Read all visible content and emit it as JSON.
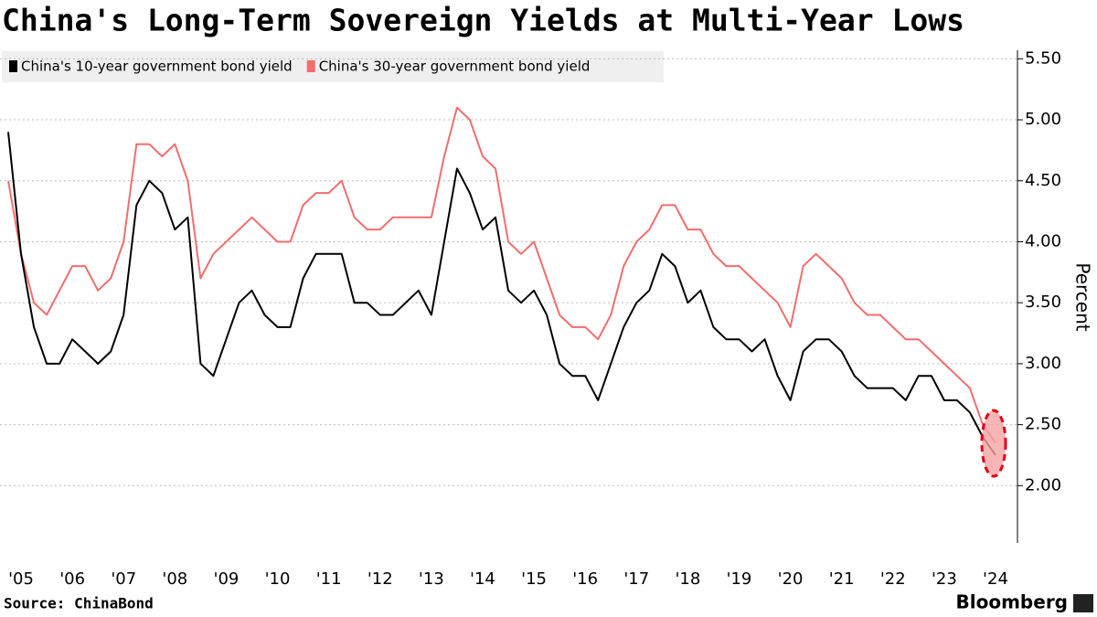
{
  "chart_data": {
    "type": "line",
    "title": "China's Long-Term Sovereign Yields at Multi-Year Lows",
    "y_label": "Percent",
    "source": "Source: ChinaBond",
    "credit": "Bloomberg",
    "categories": [
      null,
      "'05",
      null,
      null,
      null,
      "'06",
      null,
      null,
      null,
      "'07",
      null,
      null,
      null,
      "'08",
      null,
      null,
      null,
      "'09",
      null,
      null,
      null,
      "'10",
      null,
      null,
      null,
      "'11",
      null,
      null,
      null,
      "'12",
      null,
      null,
      null,
      "'13",
      null,
      null,
      null,
      "'14",
      null,
      null,
      null,
      "'15",
      null,
      null,
      null,
      "'16",
      null,
      null,
      null,
      "'17",
      null,
      null,
      null,
      "'18",
      null,
      null,
      null,
      "'19",
      null,
      null,
      null,
      "'20",
      null,
      null,
      null,
      "'21",
      null,
      null,
      null,
      "'22",
      null,
      null,
      null,
      "'23",
      null,
      null,
      null,
      "'24"
    ],
    "series": [
      {
        "name": "China's 10-year government bond yield",
        "color": "#000000",
        "values": [
          4.9,
          3.9,
          3.3,
          3.0,
          3.0,
          3.2,
          3.1,
          3.0,
          3.1,
          3.4,
          4.3,
          4.5,
          4.4,
          4.1,
          4.2,
          3.0,
          2.9,
          3.2,
          3.5,
          3.6,
          3.4,
          3.3,
          3.3,
          3.7,
          3.9,
          3.9,
          3.9,
          3.5,
          3.5,
          3.4,
          3.4,
          3.5,
          3.6,
          3.4,
          4.0,
          4.6,
          4.4,
          4.1,
          4.2,
          3.6,
          3.5,
          3.6,
          3.4,
          3.0,
          2.9,
          2.9,
          2.7,
          3.0,
          3.3,
          3.5,
          3.6,
          3.9,
          3.8,
          3.5,
          3.6,
          3.3,
          3.2,
          3.2,
          3.1,
          3.2,
          2.9,
          2.7,
          3.1,
          3.2,
          3.2,
          3.1,
          2.9,
          2.8,
          2.8,
          2.8,
          2.7,
          2.9,
          2.9,
          2.7,
          2.7,
          2.6,
          2.4,
          2.25
        ]
      },
      {
        "name": "China's 30-year government bond yield",
        "color": "#f26d6d",
        "values": [
          4.5,
          3.9,
          3.5,
          3.4,
          3.6,
          3.8,
          3.8,
          3.6,
          3.7,
          4.0,
          4.8,
          4.8,
          4.7,
          4.8,
          4.5,
          3.7,
          3.9,
          4.0,
          4.1,
          4.2,
          4.1,
          4.0,
          4.0,
          4.3,
          4.4,
          4.4,
          4.5,
          4.2,
          4.1,
          4.1,
          4.2,
          4.2,
          4.2,
          4.2,
          4.7,
          5.1,
          5.0,
          4.7,
          4.6,
          4.0,
          3.9,
          4.0,
          3.7,
          3.4,
          3.3,
          3.3,
          3.2,
          3.4,
          3.8,
          4.0,
          4.1,
          4.3,
          4.3,
          4.1,
          4.1,
          3.9,
          3.8,
          3.8,
          3.7,
          3.6,
          3.5,
          3.3,
          3.8,
          3.9,
          3.8,
          3.7,
          3.5,
          3.4,
          3.4,
          3.3,
          3.2,
          3.2,
          3.1,
          3.0,
          2.9,
          2.8,
          2.5,
          2.35
        ]
      }
    ],
    "ylim": [
      1.53,
      5.57
    ],
    "yticks": [
      {
        "value": 2,
        "label": "2.00"
      },
      {
        "value": 2.5,
        "label": "2.50"
      },
      {
        "value": 3,
        "label": "3.00"
      },
      {
        "value": 3.5,
        "label": "3.50"
      },
      {
        "value": 4,
        "label": "4.00"
      },
      {
        "value": 4.5,
        "label": "4.50"
      },
      {
        "value": 5,
        "label": "5.00"
      },
      {
        "value": 5.5,
        "label": "5.50"
      }
    ],
    "grid": true
  }
}
